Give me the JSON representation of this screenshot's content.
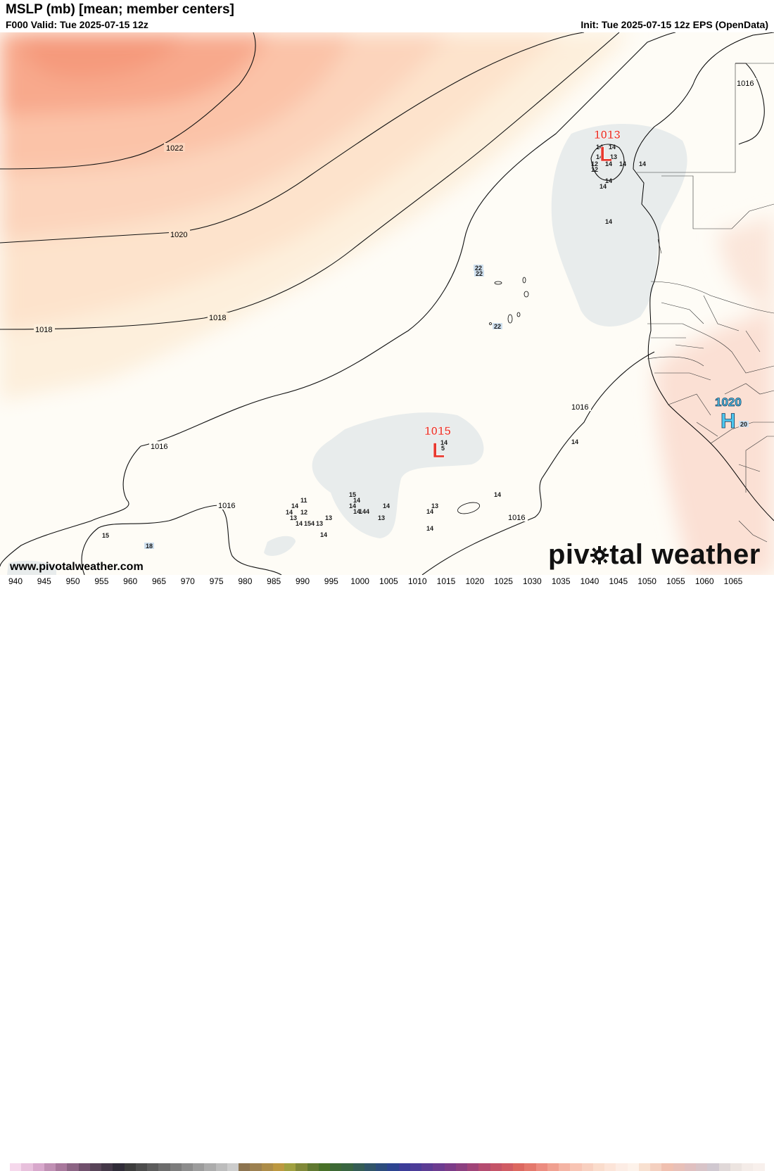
{
  "header": {
    "title": "MSLP (mb) [mean; member centers]",
    "valid": "F000 Valid: Tue 2025-07-15 12z",
    "init": "Init: Tue 2025-07-15 12z EPS (OpenData)"
  },
  "isobars": {
    "l1022": "1022",
    "l1020": "1020",
    "l1018a": "1018",
    "l1018b": "1018",
    "l1016a": "1016",
    "l1016b": "1016",
    "l1016c": "1016",
    "l1016d": "1016",
    "l1016e": "1016"
  },
  "centers": {
    "low_north": {
      "value": "1013",
      "symbol": "L"
    },
    "low_south": {
      "value": "1015",
      "symbol": "L"
    },
    "high_east": {
      "value": "1020",
      "symbol": "H",
      "member": "20"
    }
  },
  "members": [
    "14",
    "14",
    "12",
    "12",
    "14",
    "14",
    "14",
    "14",
    "14",
    "14",
    "14",
    "13",
    "22",
    "22",
    "22",
    "14",
    "5",
    "11",
    "14",
    "14",
    "12",
    "13",
    "14",
    "15",
    "4",
    "13",
    "13",
    "14",
    "15",
    "14",
    "14",
    "14",
    "14",
    "4",
    "14",
    "13",
    "14",
    "13",
    "14",
    "14",
    "14",
    "14",
    "15",
    "18"
  ],
  "footer": {
    "url": "www.pivotalweather.com",
    "logo_left": "piv",
    "logo_right": "tal weather"
  },
  "colorbar": {
    "labels": [
      "940",
      "945",
      "950",
      "955",
      "960",
      "965",
      "970",
      "975",
      "980",
      "985",
      "990",
      "995",
      "1000",
      "1005",
      "1010",
      "1015",
      "1020",
      "1025",
      "1030",
      "1035",
      "1040",
      "1045",
      "1050",
      "1055",
      "1060",
      "1065"
    ],
    "colors": [
      "#f6d8ec",
      "#e8c0dc",
      "#d8a8cc",
      "#c090b4",
      "#a8789c",
      "#8c6484",
      "#70506c",
      "#584458",
      "#443848",
      "#302c38",
      "#3c3c3c",
      "#4c4c4c",
      "#5c5c5c",
      "#6c6c6c",
      "#7c7c7c",
      "#8c8c8c",
      "#9c9c9c",
      "#acacac",
      "#bcbcbc",
      "#cccccc",
      "#8c7450",
      "#9c8050",
      "#ac8c48",
      "#bc9840",
      "#a0a040",
      "#808838",
      "#607830",
      "#487028",
      "#3c6834",
      "#386440",
      "#345c54",
      "#305468",
      "#2c4c7c",
      "#2c4490",
      "#3c3c98",
      "#4c3c98",
      "#5c3c94",
      "#6c3c90",
      "#7c3c88",
      "#8c4080",
      "#a04478",
      "#b44c70",
      "#c45468",
      "#d05c64",
      "#dc6860",
      "#e4786c",
      "#ec8c80",
      "#f0a090",
      "#f4b4a4",
      "#f8c4b4",
      "#f8d0c0",
      "#fadccc",
      "#fce4d8",
      "#fcece4",
      "#fdf2ea",
      "#f8e0d0",
      "#f4d0c0",
      "#f0c0b0",
      "#e8c0b8",
      "#e0c0c0",
      "#d8c4c8",
      "#d0c8d0",
      "#e0d8d8",
      "#ece4e0",
      "#f4ece8",
      "#f8f0ec"
    ]
  }
}
